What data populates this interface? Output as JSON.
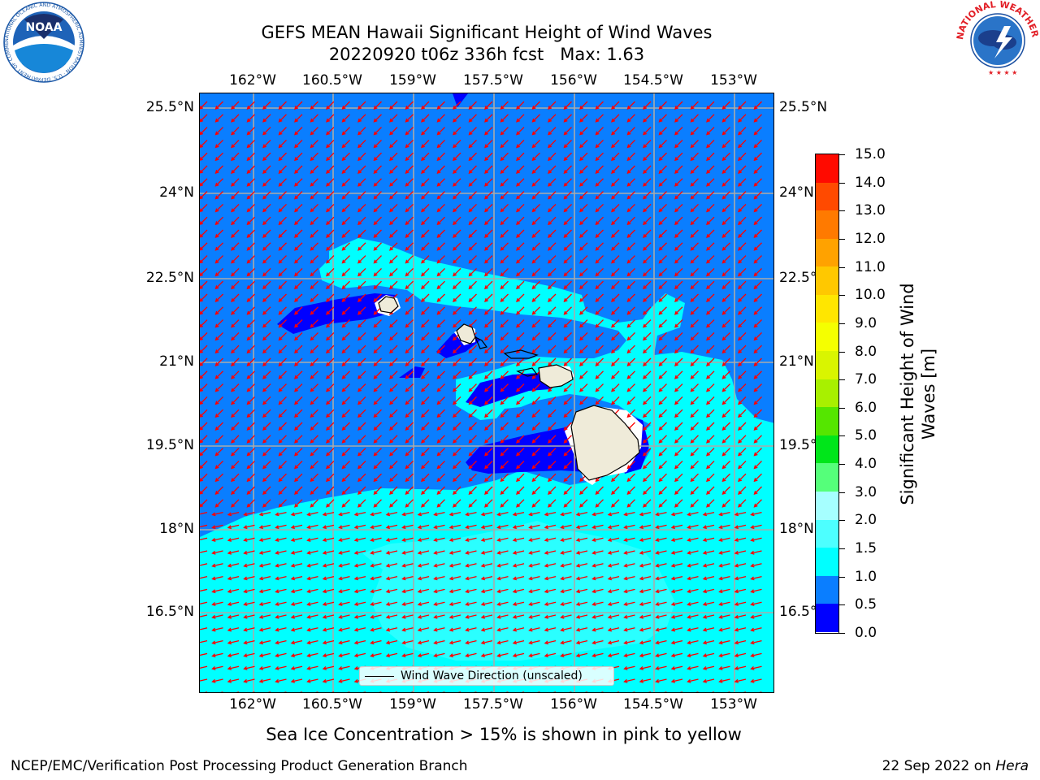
{
  "header": {
    "title_line1": "GEFS MEAN Hawaii Significant Height of Wind Waves",
    "title_line2": "20220920 t06z 336h fcst   Max: 1.63"
  },
  "logos": {
    "noaa_text": "NOAA",
    "noaa_ring_text": "NATIONAL OCEANIC AND ATMOSPHERIC ADMINISTRATION · U.S. DEPARTMENT OF COMMERCE",
    "nws_ring_text": "NATIONAL WEATHER SERVICE"
  },
  "map": {
    "lon_labels": [
      "162°W",
      "160.5°W",
      "159°W",
      "157.5°W",
      "156°W",
      "154.5°W",
      "153°W"
    ],
    "lat_labels_left": [
      "25.5°N",
      "24°N",
      "22.5°N",
      "21°N",
      "19.5°N",
      "18°N",
      "16.5°N"
    ],
    "lat_labels_right": [
      "25.5°N",
      "24°N",
      "22.5°N",
      "21°N",
      "19.5°N",
      "18°N",
      "16.5°N"
    ],
    "legend_label": "Wind Wave Direction (unscaled)",
    "arrow_color": "#ff0000",
    "land_color": "#efebd9"
  },
  "colorbar": {
    "label": "Significant Height of Wind Waves [m]",
    "ticks": [
      "0.0",
      "0.5",
      "1.0",
      "1.5",
      "2.0",
      "3.0",
      "4.0",
      "5.0",
      "6.0",
      "7.0",
      "8.0",
      "9.0",
      "10.0",
      "11.0",
      "12.0",
      "13.0",
      "14.0",
      "15.0"
    ],
    "colors": [
      "#0000ff",
      "#0a7eff",
      "#00ffff",
      "#4dffff",
      "#a6ffff",
      "#55ff7a",
      "#00e61a",
      "#55e600",
      "#a8f000",
      "#d9f500",
      "#f5ff00",
      "#ffe600",
      "#ffc800",
      "#ffa200",
      "#ff7a00",
      "#ff4a00",
      "#ff0a00"
    ]
  },
  "caption": "Sea Ice Concentration > 15% is shown in pink to yellow",
  "footer": {
    "left": "NCEP/EMC/Verification Post Processing Product Generation Branch",
    "right_prefix": "22 Sep 2022 on ",
    "right_host": "Hera"
  }
}
